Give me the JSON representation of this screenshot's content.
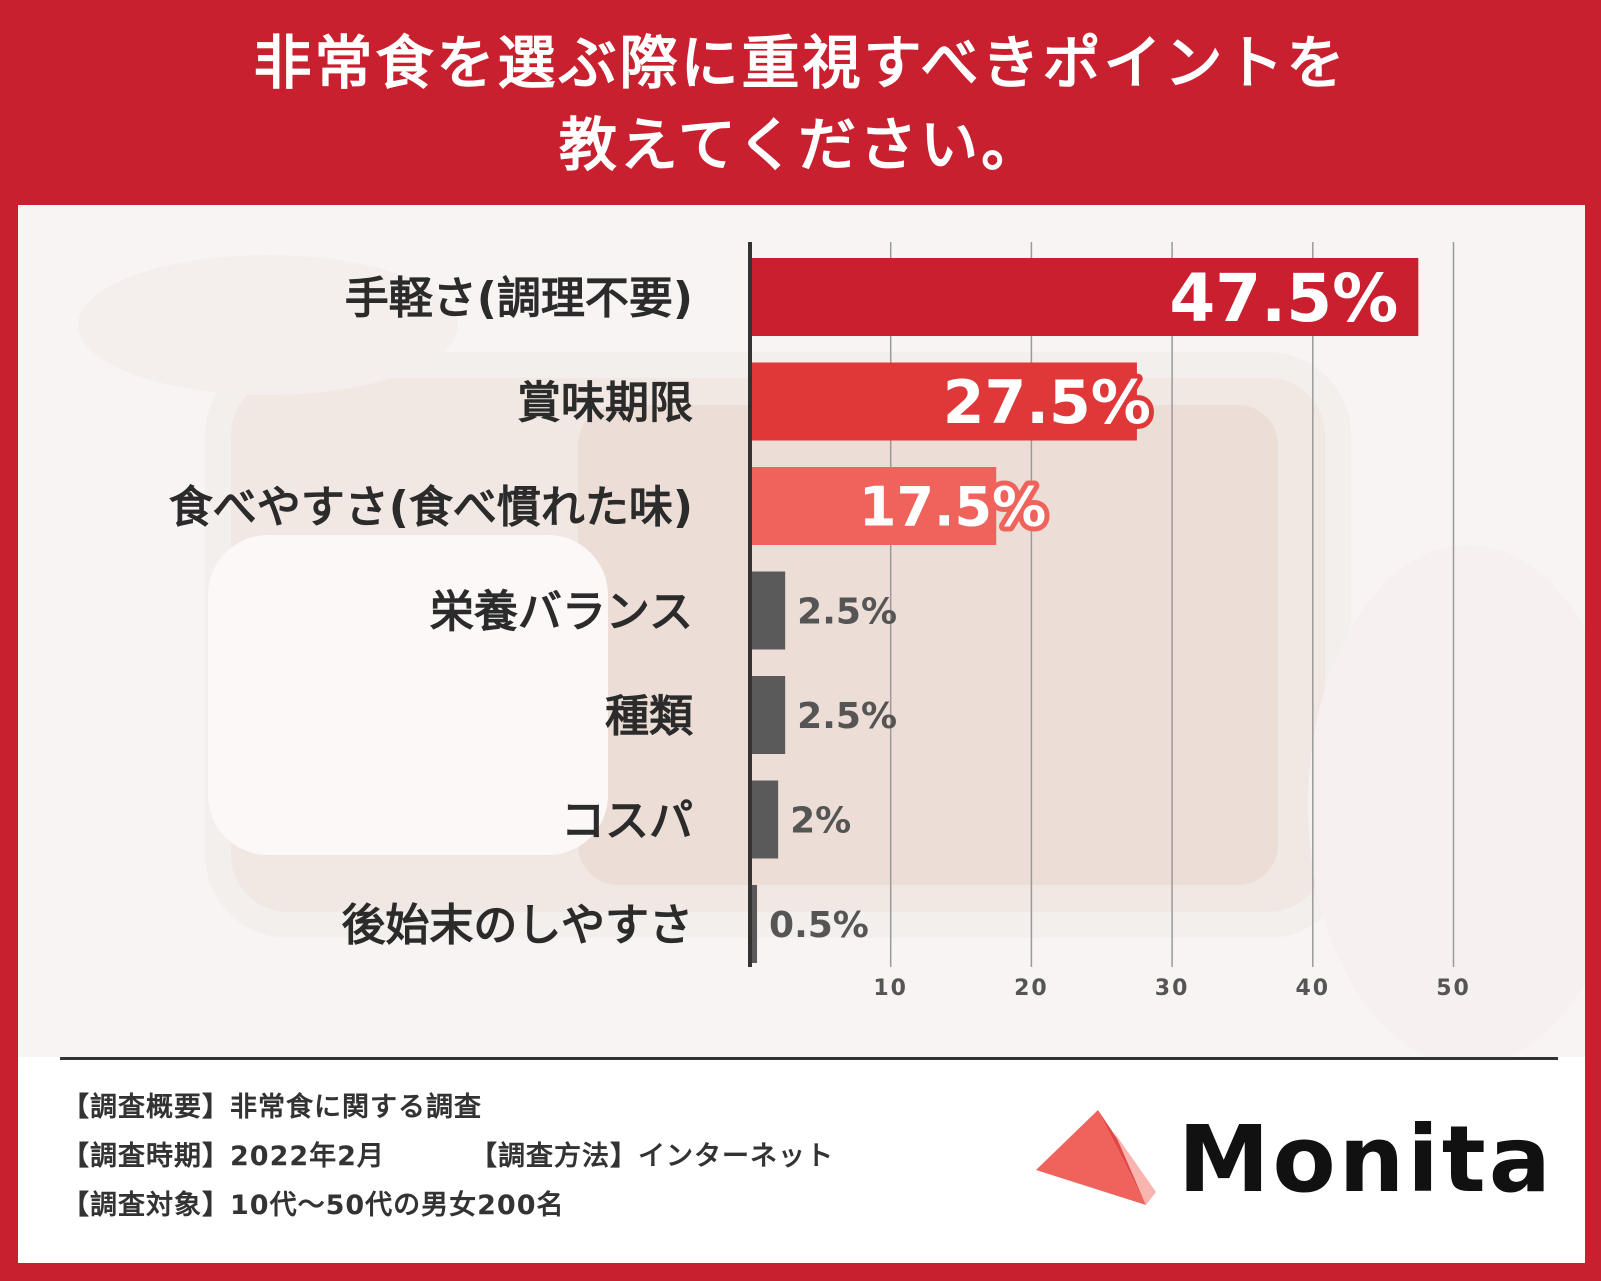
{
  "title": {
    "line1": "非常食を選ぶ際に重視すべきポイントを",
    "line2": "教えてください。"
  },
  "colors": {
    "frame": "#c8202e",
    "bar_top": "#c91f2e",
    "bar_second": "#e03838",
    "bar_third": "#f0625c",
    "bar_minor": "#5a5a5a"
  },
  "chart_data": {
    "type": "bar",
    "orientation": "horizontal",
    "categories": [
      "手軽さ(調理不要)",
      "賞味期限",
      "食べやすさ(食べ慣れた味)",
      "栄養バランス",
      "種類",
      "コスパ",
      "後始末のしやすさ"
    ],
    "values": [
      47.5,
      27.5,
      17.5,
      2.5,
      2.5,
      2,
      0.5
    ],
    "value_labels": [
      "47.5%",
      "27.5%",
      "17.5%",
      "2.5%",
      "2.5%",
      "2%",
      "0.5%"
    ],
    "xlim": [
      0,
      50
    ],
    "xticks": [
      "10",
      "20",
      "30",
      "40",
      "50"
    ],
    "grid": true
  },
  "footer": {
    "overview": "【調査概要】非常食に関する調査",
    "period": "【調査時期】2022年2月",
    "method": "【調査方法】インターネット",
    "target": "【調査対象】10代～50代の男女200名"
  },
  "logo": {
    "text": "Monita",
    "icon": "triangle-logo-icon"
  }
}
